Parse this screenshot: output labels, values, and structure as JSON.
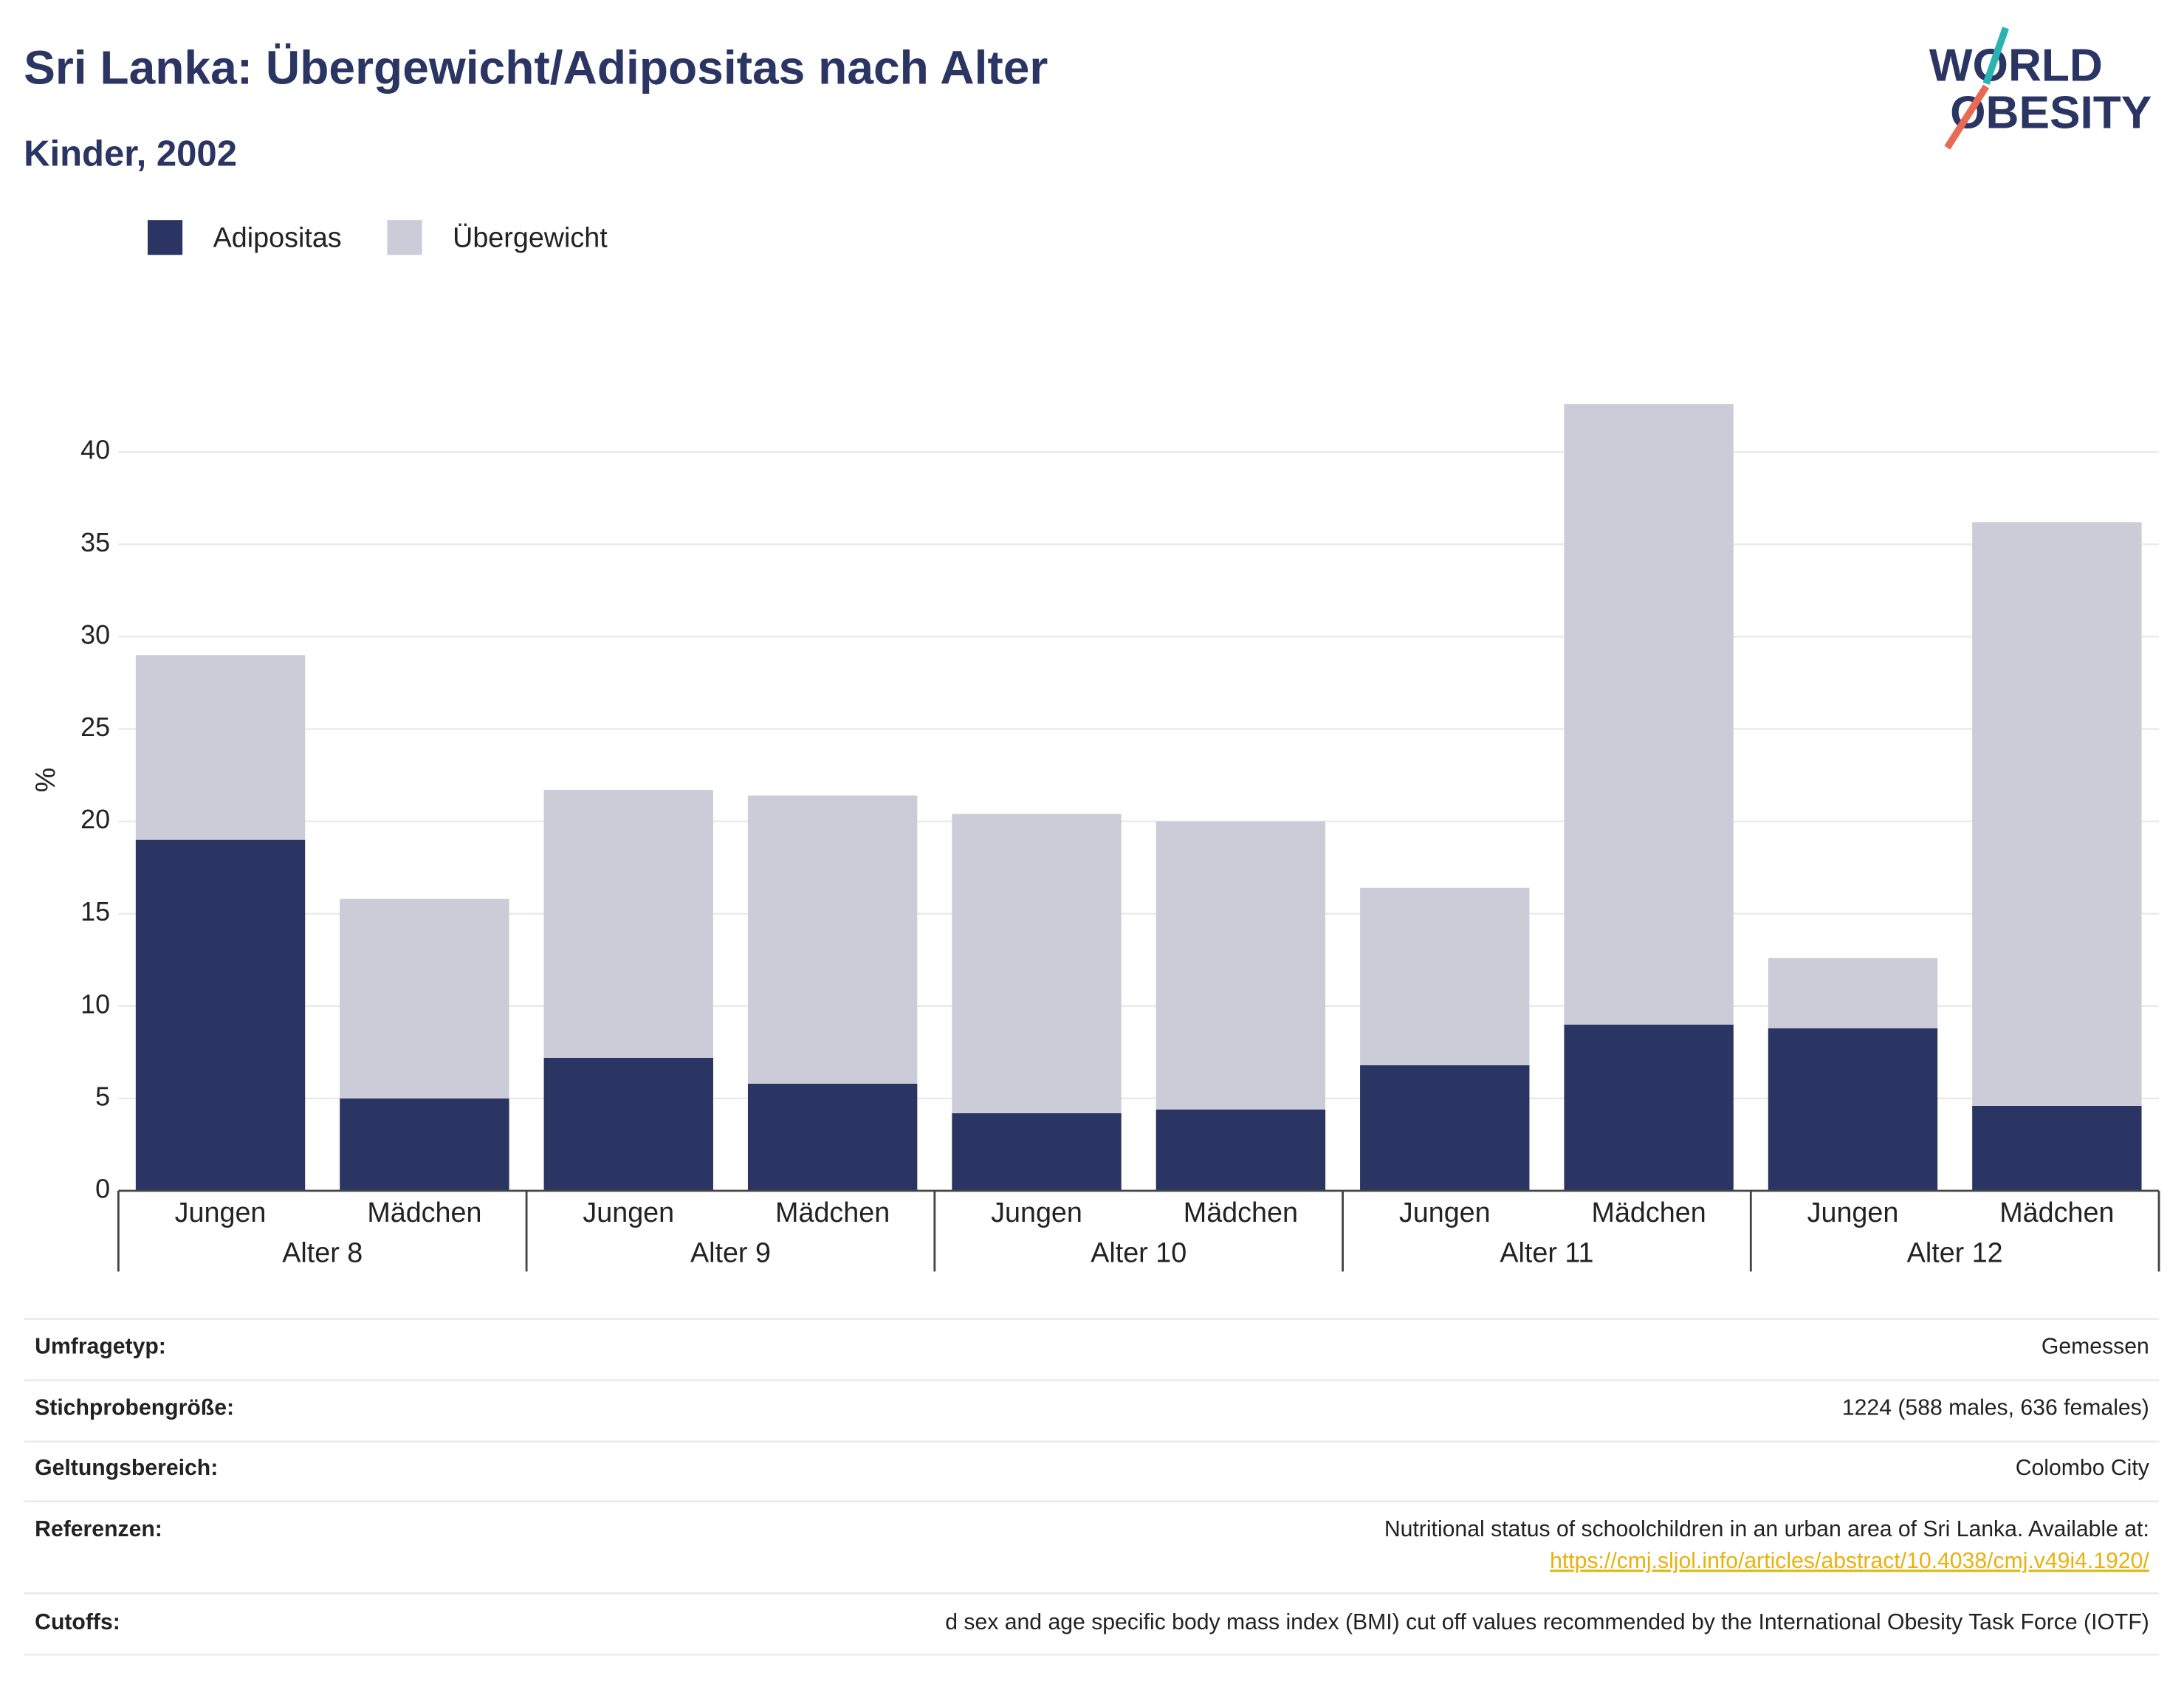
{
  "chart_data": {
    "type": "stacked_bar",
    "title": "Sri Lanka: Übergewicht/Adipositas nach Alter",
    "subtitle": "Kinder, 2002",
    "y_label": "%",
    "groups": [
      "Alter 8",
      "Alter 9",
      "Alter 10",
      "Alter 11",
      "Alter 12"
    ],
    "categories": [
      "Jungen",
      "Mädchen",
      "Jungen",
      "Mädchen",
      "Jungen",
      "Mädchen",
      "Jungen",
      "Mädchen",
      "Jungen",
      "Mädchen"
    ],
    "series": [
      {
        "name": "Adipositas",
        "color": "#2b3564",
        "values": [
          19,
          5,
          7.2,
          5.8,
          4.2,
          4.4,
          6.8,
          9.0,
          8.8,
          4.6
        ]
      },
      {
        "name": "Übergewicht",
        "color": "#cbccd8",
        "values": [
          10,
          10.8,
          14.5,
          15.6,
          16.2,
          15.6,
          9.6,
          33.6,
          3.8,
          31.6
        ]
      }
    ],
    "ylim": [
      0,
      42.6
    ],
    "yticks": [
      0,
      5,
      10,
      15,
      20,
      25,
      30,
      35,
      40
    ],
    "grid": true,
    "legend": "top-left"
  },
  "logo": {
    "line1": "WORLD",
    "line2": "OBESITY"
  },
  "table": {
    "rows": [
      [
        "Umfragetyp:",
        "Gemessen"
      ],
      [
        "Stichprobengröße:",
        "1224 (588 males, 636 females)"
      ],
      [
        "Geltungsbereich:",
        "Colombo City"
      ],
      [
        "Referenzen:",
        "Nutritional status of schoolchildren in an urban area of Sri Lanka. Available at:",
        "https://cmj.sljol.info/articles/abstract/10.4038/cmj.v49i4.1920/"
      ],
      [
        "Cutoffs:",
        "d sex and age specific body mass index (BMI) cut off values recommended by the International Obesity Task Force (IOTF)"
      ]
    ]
  }
}
